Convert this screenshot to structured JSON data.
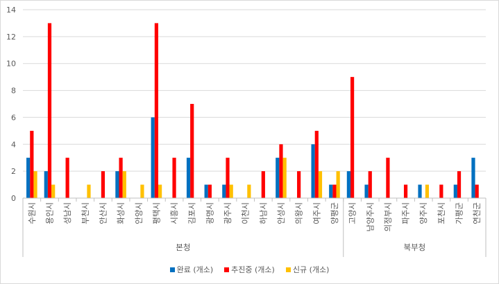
{
  "chart_data": {
    "type": "bar",
    "title": "",
    "xlabel": "",
    "ylabel": "",
    "ylim": [
      0,
      14
    ],
    "yticks": [
      0,
      2,
      4,
      6,
      8,
      10,
      12,
      14
    ],
    "grid": true,
    "legend_position": "bottom",
    "categories": [
      "수원시",
      "용인시",
      "성남시",
      "부천시",
      "안산시",
      "화성시",
      "안양시",
      "평택시",
      "시흥시",
      "김포시",
      "광명시",
      "광주시",
      "이천시",
      "하남시",
      "안성시",
      "의왕시",
      "여주시",
      "양평군",
      "고양시",
      "남양주시",
      "의정부시",
      "파주시",
      "양주시",
      "포천시",
      "가평군",
      "연천군"
    ],
    "groups": [
      {
        "label": "본청",
        "start": 0,
        "end": 17
      },
      {
        "label": "북부청",
        "start": 18,
        "end": 25
      }
    ],
    "series": [
      {
        "name": "완료 (개소)",
        "color": "#0070C0",
        "values": [
          3,
          2,
          0,
          0,
          0,
          2,
          0,
          6,
          0,
          3,
          1,
          1,
          0,
          0,
          3,
          0,
          4,
          1,
          2,
          1,
          0,
          0,
          1,
          0,
          1,
          3
        ]
      },
      {
        "name": "추진중 (개소)",
        "color": "#FF0000",
        "values": [
          5,
          13,
          3,
          0,
          2,
          3,
          0,
          13,
          3,
          7,
          1,
          3,
          0,
          2,
          4,
          2,
          5,
          1,
          9,
          2,
          3,
          1,
          0,
          1,
          2,
          1
        ]
      },
      {
        "name": "신규 (개소)",
        "color": "#FFC000",
        "values": [
          2,
          1,
          0,
          1,
          0,
          2,
          1,
          1,
          0,
          0,
          0,
          1,
          1,
          0,
          3,
          0,
          2,
          2,
          0,
          0,
          0,
          0,
          1,
          0,
          0,
          0
        ]
      }
    ]
  }
}
